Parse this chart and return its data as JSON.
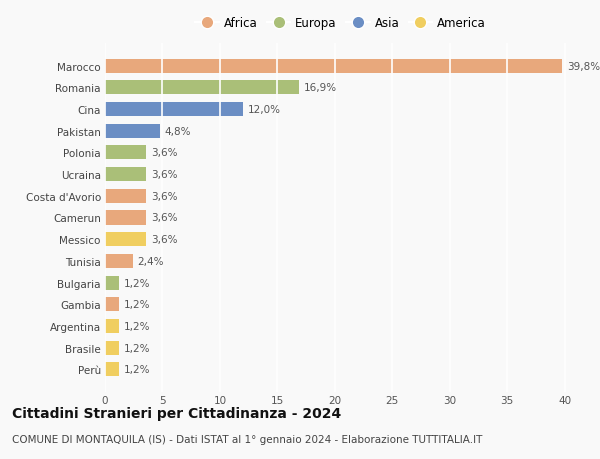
{
  "countries": [
    "Marocco",
    "Romania",
    "Cina",
    "Pakistan",
    "Polonia",
    "Ucraina",
    "Costa d'Avorio",
    "Camerun",
    "Messico",
    "Tunisia",
    "Bulgaria",
    "Gambia",
    "Argentina",
    "Brasile",
    "Perù"
  ],
  "values": [
    39.8,
    16.9,
    12.0,
    4.8,
    3.6,
    3.6,
    3.6,
    3.6,
    3.6,
    2.4,
    1.2,
    1.2,
    1.2,
    1.2,
    1.2
  ],
  "labels": [
    "39,8%",
    "16,9%",
    "12,0%",
    "4,8%",
    "3,6%",
    "3,6%",
    "3,6%",
    "3,6%",
    "3,6%",
    "2,4%",
    "1,2%",
    "1,2%",
    "1,2%",
    "1,2%",
    "1,2%"
  ],
  "continents": [
    "Africa",
    "Europa",
    "Asia",
    "Asia",
    "Europa",
    "Europa",
    "Africa",
    "Africa",
    "America",
    "Africa",
    "Europa",
    "Africa",
    "America",
    "America",
    "America"
  ],
  "colors": {
    "Africa": "#E8A87C",
    "Europa": "#AABF78",
    "Asia": "#6B8EC4",
    "America": "#F0CE60"
  },
  "xlim": [
    0,
    41
  ],
  "xticks": [
    0,
    5,
    10,
    15,
    20,
    25,
    30,
    35,
    40
  ],
  "title": "Cittadini Stranieri per Cittadinanza - 2024",
  "subtitle": "COMUNE DI MONTAQUILA (IS) - Dati ISTAT al 1° gennaio 2024 - Elaborazione TUTTITALIA.IT",
  "background_color": "#f9f9f9",
  "bar_height": 0.65,
  "grid_color": "#ffffff",
  "title_fontsize": 10,
  "subtitle_fontsize": 7.5,
  "label_fontsize": 7.5,
  "tick_fontsize": 7.5,
  "legend_fontsize": 8.5
}
